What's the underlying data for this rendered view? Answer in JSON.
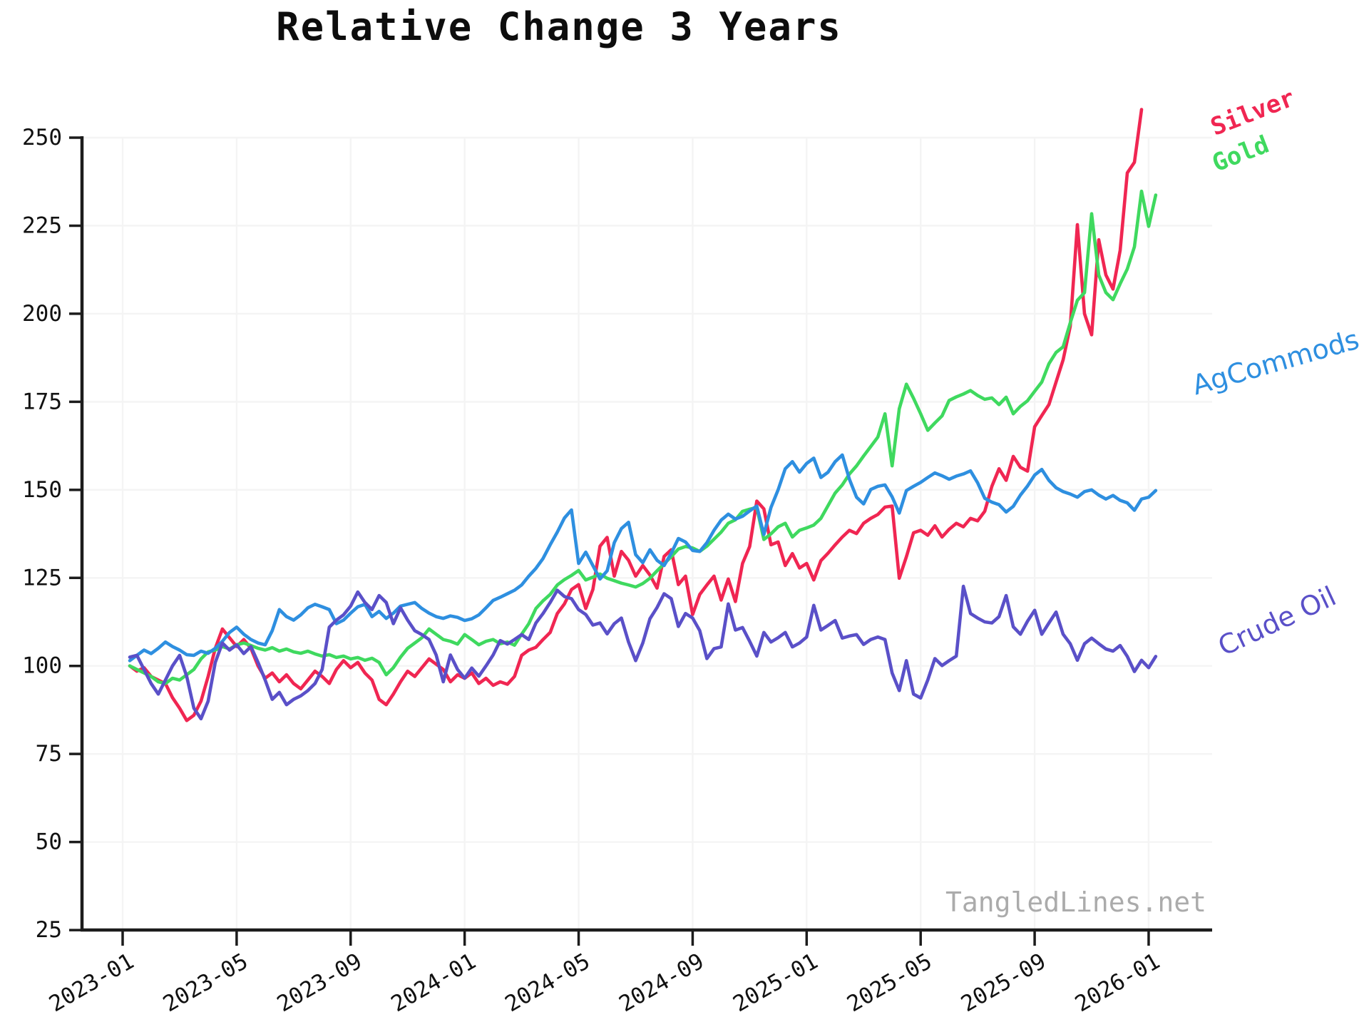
{
  "title": "Relative Change 3 Years",
  "watermark": "TangledLines.net",
  "colors": {
    "background": "#ffffff",
    "grid": "#f4f4f4",
    "axis": "#1c1c1c",
    "tick_label": "#111111",
    "watermark": "#ababab",
    "silver": "#f02652",
    "gold": "#3fd95f",
    "agcommods": "#2e8fe0",
    "crude_oil": "#5a50c8"
  },
  "chart_data": {
    "type": "line",
    "title": "Relative Change 3 Years",
    "xlabel": "",
    "ylabel": "",
    "grid": true,
    "legend_position": "labels-at-right-line-ends",
    "x_base_date": "2023-01",
    "x_unit": "months since 2023-01",
    "x_start_month": 0.25,
    "x_step_month": 0.25,
    "x_tick_months": [
      0,
      4,
      8,
      12,
      16,
      20,
      24,
      28,
      32,
      36
    ],
    "x_tick_labels": [
      "2023-01",
      "2023-05",
      "2023-09",
      "2024-01",
      "2024-05",
      "2024-09",
      "2025-01",
      "2025-05",
      "2025-09",
      "2026-01"
    ],
    "y_ticks": [
      25,
      50,
      75,
      100,
      125,
      150,
      175,
      200,
      225,
      250
    ],
    "ylim": [
      25,
      250
    ],
    "series": [
      {
        "name": "Silver",
        "color": "#f02652",
        "values": [
          100,
          98.5,
          99.5,
          97,
          96,
          95,
          91,
          88,
          84.5,
          86,
          90,
          97,
          105,
          110.5,
          108,
          105.5,
          107.5,
          105,
          100,
          96.5,
          98,
          95.5,
          97.5,
          95,
          93.5,
          96,
          98.5,
          97,
          95,
          99,
          101.5,
          99.5,
          101,
          98,
          96,
          90.5,
          89,
          92,
          95.5,
          98.5,
          97,
          99.5,
          102,
          100.5,
          99,
          95.5,
          97.5,
          96.5,
          98,
          95,
          96.5,
          94.5,
          95.5,
          94.8,
          97,
          103,
          104.5,
          105.3,
          107.5,
          109.5,
          114.9,
          117.6,
          121.7,
          123.1,
          116.3,
          121.7,
          134,
          136.5,
          125.5,
          132.5,
          130,
          125.5,
          128.5,
          125.8,
          122.1,
          131.1,
          133,
          123.1,
          125.5,
          114.6,
          120.3,
          123,
          125.5,
          118.7,
          124.7,
          118.3,
          129.1,
          133.9,
          146.8,
          144.6,
          134.4,
          135.2,
          128.5,
          131.9,
          127.8,
          129.1,
          124.4,
          129.9,
          132,
          134.4,
          136.6,
          138.5,
          137.6,
          140.5,
          141.9,
          143,
          145.1,
          145.4,
          124.9,
          131,
          137.8,
          138.5,
          137.1,
          139.8,
          136.6,
          138.8,
          140.5,
          139.5,
          141.9,
          141.2,
          143.9,
          151,
          156,
          152.7,
          159.5,
          156.4,
          155.3,
          167.9,
          171.1,
          174.2,
          180.6,
          186.9,
          196.4,
          225.3,
          200,
          194,
          221,
          211,
          207,
          218,
          240,
          243,
          258
        ]
      },
      {
        "name": "Gold",
        "color": "#3fd95f",
        "values": [
          100,
          99,
          98,
          97,
          95.5,
          95,
          96.5,
          96,
          97.5,
          99,
          102,
          104,
          104.5,
          105.5,
          104.8,
          106,
          106.5,
          105.8,
          105,
          104.5,
          105.2,
          104.2,
          104.8,
          104,
          103.6,
          104.2,
          103.4,
          102.8,
          103.2,
          102.4,
          102.8,
          102,
          102.4,
          101.6,
          102.2,
          101,
          97.5,
          99.5,
          102.5,
          105,
          106.5,
          108,
          110.5,
          109,
          107.5,
          107,
          106.2,
          108.9,
          107.5,
          106,
          107,
          107.5,
          106.3,
          106.8,
          105.9,
          109,
          112,
          116.3,
          118.5,
          120.3,
          123,
          124.5,
          125.7,
          127.1,
          124.4,
          125.2,
          126.1,
          124.9,
          124.2,
          123.5,
          123,
          122.4,
          123.4,
          124.9,
          127,
          129,
          131,
          133.2,
          133.9,
          133.5,
          132.5,
          134,
          136,
          138,
          140.5,
          141.5,
          143.9,
          144.5,
          145,
          135.9,
          137.5,
          139.5,
          140.5,
          136.6,
          138.5,
          139.2,
          140,
          141.9,
          145.5,
          149.1,
          151.4,
          154.5,
          156.8,
          159.6,
          162.3,
          165,
          171.6,
          156.8,
          173,
          180,
          176,
          171.6,
          166.9,
          169,
          171,
          175.4,
          176.4,
          177.2,
          178.2,
          176.8,
          175.7,
          176.1,
          174.2,
          176.3,
          171.6,
          173.7,
          175.3,
          178,
          180.6,
          185.8,
          189,
          190.6,
          197.4,
          203.8,
          206,
          228.4,
          211,
          206,
          204,
          208.5,
          212.7,
          219,
          234.8,
          224.8,
          233.7
        ]
      },
      {
        "name": "AgCommods",
        "color": "#2e8fe0",
        "values": [
          101.5,
          103,
          104.5,
          103.5,
          105,
          106.8,
          105.5,
          104.5,
          103.2,
          103,
          104.2,
          103.6,
          105,
          107,
          109.5,
          111,
          109,
          107.5,
          106.5,
          106,
          110,
          116,
          114,
          113,
          114.5,
          116.5,
          117.5,
          116.8,
          116,
          112,
          113,
          115,
          116.8,
          117.5,
          114,
          115.5,
          113.5,
          115,
          117,
          117.5,
          118,
          116.3,
          115,
          114,
          113.5,
          114.2,
          113.8,
          112.9,
          113.4,
          114.5,
          116.5,
          118.6,
          119.5,
          120.5,
          121.5,
          123,
          125.5,
          127.7,
          130.5,
          134.4,
          138,
          142,
          144.3,
          129.1,
          132.3,
          128.5,
          124.7,
          127,
          135,
          139,
          140.8,
          131.6,
          129.3,
          133,
          130,
          128.5,
          132,
          136.2,
          135.2,
          132.8,
          132.5,
          135,
          138.5,
          141.4,
          143.1,
          141.7,
          142.5,
          144,
          145.4,
          137.3,
          145,
          150,
          156,
          158,
          155,
          157.5,
          159,
          153.5,
          155,
          158,
          159.9,
          153,
          147.9,
          146,
          150.1,
          151,
          151.4,
          148,
          143.4,
          149.8,
          151,
          152.1,
          153.5,
          154.8,
          154,
          153,
          153.9,
          154.5,
          155.4,
          152,
          147.6,
          146.5,
          145.8,
          143.7,
          145.3,
          148.5,
          151.1,
          154.2,
          155.8,
          152.7,
          150.6,
          149.5,
          148.8,
          147.9,
          149.5,
          150,
          148.5,
          147.4,
          148.4,
          147,
          146.3,
          144.2,
          147.4,
          147.9,
          149.8
        ]
      },
      {
        "name": "Crude Oil",
        "color": "#5a50c8",
        "values": [
          102.5,
          103,
          99,
          95,
          92,
          96,
          100,
          103,
          97,
          88,
          85,
          90,
          101,
          106.5,
          104.5,
          106,
          103.5,
          105.5,
          101,
          96,
          90.5,
          92.5,
          89,
          90.5,
          91.5,
          93,
          95,
          99,
          111,
          113,
          114.5,
          117,
          121,
          118,
          116,
          120,
          118,
          112,
          116.5,
          113,
          110,
          108.9,
          107.5,
          103.1,
          95.5,
          103.1,
          99,
          96.5,
          99.4,
          97.1,
          100,
          103.1,
          107.2,
          106.2,
          107.5,
          108.9,
          107.5,
          112.2,
          114.9,
          118,
          121.5,
          119.7,
          119.1,
          116,
          114.6,
          111.6,
          112.2,
          109.1,
          112,
          113.6,
          106.8,
          101.5,
          106.5,
          113.4,
          116.6,
          120.5,
          119.1,
          111.2,
          114.9,
          113.6,
          110,
          102.1,
          104.9,
          105.4,
          117.6,
          110.2,
          110.9,
          107,
          102.8,
          109.5,
          106.8,
          108,
          109.5,
          105.4,
          106.5,
          108.2,
          117.2,
          110.2,
          111.5,
          112.9,
          107.9,
          108.5,
          108.9,
          106.1,
          107.5,
          108.2,
          107.5,
          98,
          93,
          101.5,
          92,
          90.9,
          96,
          102.1,
          100.1,
          101.5,
          102.8,
          122.6,
          114.9,
          113.6,
          112.5,
          112.2,
          114,
          120,
          111.1,
          109,
          112.7,
          115.8,
          109,
          112.2,
          115.3,
          109,
          106.3,
          101.6,
          106.3,
          107.9,
          106.3,
          104.8,
          104.2,
          105.8,
          102.7,
          98.4,
          101.6,
          99.5,
          102.7
        ]
      }
    ]
  }
}
